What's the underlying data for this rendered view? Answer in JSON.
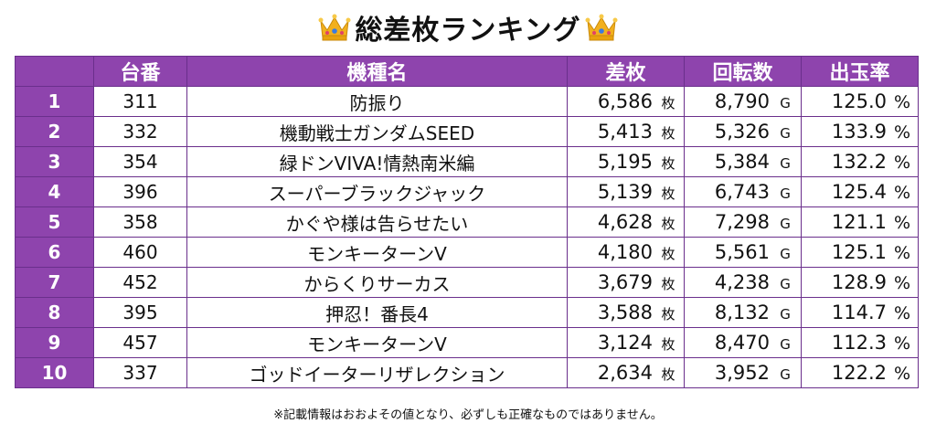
{
  "title": "総差枚ランキング",
  "title_icon": "crown-emoji",
  "colors": {
    "header_bg": "#8e44ad",
    "border": "#6a2f8c",
    "header_text": "#ffffff"
  },
  "headers": {
    "rank": "",
    "machine_no": "台番",
    "machine_name": "機種名",
    "difference": "差枚",
    "spins": "回転数",
    "payout_rate": "出玉率"
  },
  "units": {
    "difference": "枚",
    "spins": "G",
    "payout_rate": "%"
  },
  "rows": [
    {
      "rank": "1",
      "machine_no": "311",
      "name": "防振り",
      "difference": "6,586",
      "spins": "8,790",
      "rate": "125.0"
    },
    {
      "rank": "2",
      "machine_no": "332",
      "name": "機動戦士ガンダムSEED",
      "difference": "5,413",
      "spins": "5,326",
      "rate": "133.9"
    },
    {
      "rank": "3",
      "machine_no": "354",
      "name": "緑ドンVIVA!情熱南米編",
      "difference": "5,195",
      "spins": "5,384",
      "rate": "132.2"
    },
    {
      "rank": "4",
      "machine_no": "396",
      "name": "スーパーブラックジャック",
      "difference": "5,139",
      "spins": "6,743",
      "rate": "125.4"
    },
    {
      "rank": "5",
      "machine_no": "358",
      "name": "かぐや様は告らせたい",
      "difference": "4,628",
      "spins": "7,298",
      "rate": "121.1"
    },
    {
      "rank": "6",
      "machine_no": "460",
      "name": "モンキーターンV",
      "difference": "4,180",
      "spins": "5,561",
      "rate": "125.1"
    },
    {
      "rank": "7",
      "machine_no": "452",
      "name": "からくりサーカス",
      "difference": "3,679",
      "spins": "4,238",
      "rate": "128.9"
    },
    {
      "rank": "8",
      "machine_no": "395",
      "name": "押忍！番長4",
      "difference": "3,588",
      "spins": "8,132",
      "rate": "114.7"
    },
    {
      "rank": "9",
      "machine_no": "457",
      "name": "モンキーターンV",
      "difference": "3,124",
      "spins": "8,470",
      "rate": "112.3"
    },
    {
      "rank": "10",
      "machine_no": "337",
      "name": "ゴッドイーターリザレクション",
      "difference": "2,634",
      "spins": "3,952",
      "rate": "122.2"
    }
  ],
  "note": "※記載情報はおおよその値となり、必ずしも正確なものではありません。"
}
